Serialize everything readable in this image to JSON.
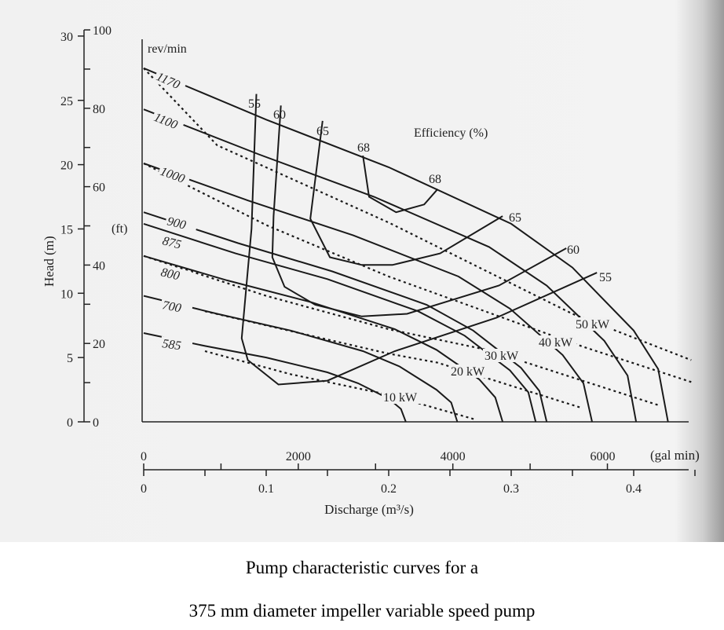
{
  "caption": {
    "line1": "Pump characteristic curves for a",
    "line2": "375 mm diameter impeller variable speed pump"
  },
  "chart_data": {
    "type": "line",
    "title": "",
    "xlabel": "Discharge (m³/s)",
    "xlabel_secondary": "(gal min)",
    "ylabel": "Head (m)",
    "ylabel_secondary": "(ft)",
    "xlim": [
      0,
      0.44
    ],
    "ylim": [
      0,
      30
    ],
    "x_ticks": [
      "0",
      "0.1",
      "0.2",
      "0.3",
      "0.4"
    ],
    "x_ticks_secondary": [
      "0",
      "2000",
      "4000",
      "6000"
    ],
    "y_ticks": [
      "0",
      "5",
      "10",
      "15",
      "20",
      "25",
      "30"
    ],
    "y_ticks_secondary": [
      "0",
      "20",
      "40",
      "60",
      "80",
      "100"
    ],
    "speed_group_label": "rev/min",
    "efficiency_group_label": "Efficiency (%)",
    "speed_curves": [
      {
        "name": "1170",
        "points": [
          [
            0,
            27.5
          ],
          [
            0.1,
            23.5
          ],
          [
            0.2,
            19.8
          ],
          [
            0.3,
            15.4
          ],
          [
            0.35,
            12
          ],
          [
            0.4,
            7.1
          ],
          [
            0.42,
            4.1
          ],
          [
            0.428,
            0
          ]
        ]
      },
      {
        "name": "1100",
        "points": [
          [
            0,
            24.3
          ],
          [
            0.094,
            20.8
          ],
          [
            0.188,
            17.5
          ],
          [
            0.282,
            13.6
          ],
          [
            0.329,
            10.6
          ],
          [
            0.376,
            6.3
          ],
          [
            0.395,
            3.6
          ],
          [
            0.402,
            0
          ]
        ]
      },
      {
        "name": "1000",
        "points": [
          [
            0,
            20.1
          ],
          [
            0.0855,
            17.2
          ],
          [
            0.171,
            14.5
          ],
          [
            0.257,
            11.3
          ],
          [
            0.299,
            8.8
          ],
          [
            0.342,
            5.2
          ],
          [
            0.359,
            3.0
          ],
          [
            0.366,
            0
          ]
        ]
      },
      {
        "name": "900",
        "points": [
          [
            0,
            16.3
          ],
          [
            0.077,
            13.9
          ],
          [
            0.154,
            11.7
          ],
          [
            0.231,
            9.1
          ],
          [
            0.269,
            7.1
          ],
          [
            0.308,
            4.2
          ],
          [
            0.323,
            2.4
          ],
          [
            0.329,
            0
          ]
        ]
      },
      {
        "name": "875",
        "points": [
          [
            0,
            15.4
          ],
          [
            0.075,
            13.1
          ],
          [
            0.15,
            11.1
          ],
          [
            0.224,
            8.6
          ],
          [
            0.262,
            6.7
          ],
          [
            0.299,
            4.0
          ],
          [
            0.314,
            2.3
          ],
          [
            0.32,
            0
          ]
        ]
      },
      {
        "name": "800",
        "points": [
          [
            0,
            12.9
          ],
          [
            0.068,
            11.0
          ],
          [
            0.137,
            9.3
          ],
          [
            0.205,
            7.2
          ],
          [
            0.239,
            5.6
          ],
          [
            0.274,
            3.3
          ],
          [
            0.287,
            1.9
          ],
          [
            0.293,
            0
          ]
        ]
      },
      {
        "name": "700",
        "points": [
          [
            0,
            9.8
          ],
          [
            0.06,
            8.4
          ],
          [
            0.12,
            7.1
          ],
          [
            0.179,
            5.5
          ],
          [
            0.209,
            4.3
          ],
          [
            0.239,
            2.5
          ],
          [
            0.251,
            1.5
          ],
          [
            0.256,
            0
          ]
        ]
      },
      {
        "name": "585",
        "points": [
          [
            0,
            6.9
          ],
          [
            0.05,
            5.9
          ],
          [
            0.1,
            5.0
          ],
          [
            0.15,
            3.85
          ],
          [
            0.175,
            3.0
          ],
          [
            0.2,
            1.8
          ],
          [
            0.21,
            1.0
          ],
          [
            0.214,
            0
          ]
        ]
      }
    ],
    "power_curves": [
      {
        "name": "50 kW",
        "points": [
          [
            0,
            27.5
          ],
          [
            0.06,
            21.5
          ],
          [
            0.2,
            15.5
          ],
          [
            0.35,
            8.4
          ],
          [
            0.447,
            4.8
          ]
        ]
      },
      {
        "name": "40 kW",
        "points": [
          [
            0,
            20.1
          ],
          [
            0.1,
            15.3
          ],
          [
            0.2,
            11.3
          ],
          [
            0.36,
            5.8
          ],
          [
            0.447,
            3.1
          ]
        ]
      },
      {
        "name": "30 kW",
        "points": [
          [
            0,
            12.9
          ],
          [
            0.1,
            9.8
          ],
          [
            0.2,
            7.2
          ],
          [
            0.28,
            5.6
          ],
          [
            0.42,
            1.3
          ]
        ]
      },
      {
        "name": "20 kW",
        "points": [
          [
            0.05,
            8.6
          ],
          [
            0.1,
            7.5
          ],
          [
            0.2,
            5.3
          ],
          [
            0.24,
            4.6
          ],
          [
            0.357,
            1.1
          ]
        ]
      },
      {
        "name": "10 kW",
        "points": [
          [
            0.05,
            5.5
          ],
          [
            0.12,
            3.7
          ],
          [
            0.2,
            2.1
          ],
          [
            0.27,
            0.2
          ]
        ]
      }
    ],
    "efficiency_curves": [
      {
        "name": "55",
        "points": [
          [
            0.092,
            25.5
          ],
          [
            0.088,
            15
          ],
          [
            0.08,
            6.5
          ],
          [
            0.085,
            4.8
          ],
          [
            0.11,
            2.9
          ],
          [
            0.15,
            3.2
          ],
          [
            0.205,
            5.5
          ],
          [
            0.288,
            8.1
          ],
          [
            0.37,
            11.6
          ]
        ]
      },
      {
        "name": "60",
        "points": [
          [
            0.112,
            24.6
          ],
          [
            0.106,
            16
          ],
          [
            0.105,
            12.8
          ],
          [
            0.115,
            10.5
          ],
          [
            0.14,
            9.1
          ],
          [
            0.178,
            8.2
          ],
          [
            0.215,
            8.4
          ],
          [
            0.29,
            10.6
          ],
          [
            0.345,
            13.5
          ]
        ]
      },
      {
        "name": "65",
        "points": [
          [
            0.146,
            23.4
          ],
          [
            0.136,
            15.8
          ],
          [
            0.152,
            12.8
          ],
          [
            0.178,
            12.2
          ],
          [
            0.203,
            12.2
          ],
          [
            0.242,
            13.1
          ],
          [
            0.293,
            16
          ]
        ]
      },
      {
        "name": "68",
        "points": [
          [
            0.179,
            20.7
          ],
          [
            0.184,
            17.5
          ],
          [
            0.206,
            16.3
          ],
          [
            0.229,
            16.9
          ],
          [
            0.24,
            18.1
          ]
        ]
      }
    ]
  }
}
